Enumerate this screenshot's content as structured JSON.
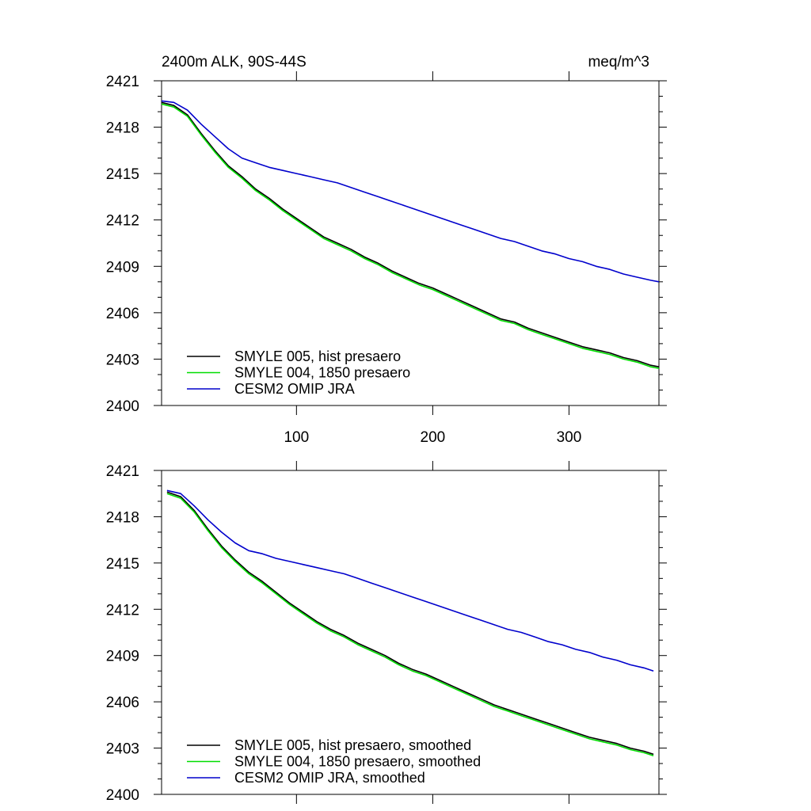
{
  "chart_data": [
    {
      "type": "line",
      "title": "2400m ALK, 90S-44S",
      "units": "meq/m^3",
      "xlabel": "",
      "ylabel": "",
      "xlim": [
        1,
        366
      ],
      "ylim": [
        2400,
        2421
      ],
      "xticks": [
        100,
        200,
        300
      ],
      "xtick_labels": [
        "100",
        "200",
        "300"
      ],
      "yticks": [
        2400,
        2403,
        2406,
        2409,
        2412,
        2415,
        2418,
        2421
      ],
      "ytick_labels": [
        "2400",
        "2403",
        "2406",
        "2409",
        "2412",
        "2415",
        "2418",
        "2421"
      ],
      "grid": false,
      "legend_position": "bottom-left",
      "series": [
        {
          "name": "SMYLE 005, hist presaero",
          "color": "#000000",
          "x": [
            1,
            10,
            20,
            30,
            40,
            50,
            60,
            70,
            80,
            90,
            100,
            110,
            120,
            130,
            140,
            150,
            160,
            170,
            180,
            190,
            200,
            210,
            220,
            230,
            240,
            250,
            260,
            270,
            280,
            290,
            300,
            310,
            320,
            330,
            340,
            350,
            360,
            366
          ],
          "y": [
            2419.6,
            2419.4,
            2418.8,
            2417.6,
            2416.5,
            2415.5,
            2414.8,
            2414.0,
            2413.4,
            2412.7,
            2412.1,
            2411.5,
            2410.9,
            2410.5,
            2410.1,
            2409.6,
            2409.2,
            2408.7,
            2408.3,
            2407.9,
            2407.6,
            2407.2,
            2406.8,
            2406.4,
            2406.0,
            2405.6,
            2405.4,
            2405.0,
            2404.7,
            2404.4,
            2404.1,
            2403.8,
            2403.6,
            2403.4,
            2403.1,
            2402.9,
            2402.6,
            2402.5
          ]
        },
        {
          "name": "SMYLE 004, 1850 presaero",
          "color": "#00dd00",
          "x": [
            1,
            10,
            20,
            30,
            40,
            50,
            60,
            70,
            80,
            90,
            100,
            110,
            120,
            130,
            140,
            150,
            160,
            170,
            180,
            190,
            200,
            210,
            220,
            230,
            240,
            250,
            260,
            270,
            280,
            290,
            300,
            310,
            320,
            330,
            340,
            350,
            360,
            366
          ],
          "y": [
            2419.5,
            2419.3,
            2418.7,
            2417.5,
            2416.4,
            2415.4,
            2414.7,
            2413.9,
            2413.3,
            2412.6,
            2412.0,
            2411.4,
            2410.8,
            2410.4,
            2410.0,
            2409.5,
            2409.1,
            2408.6,
            2408.2,
            2407.8,
            2407.5,
            2407.1,
            2406.7,
            2406.3,
            2405.9,
            2405.5,
            2405.3,
            2404.9,
            2404.6,
            2404.3,
            2404.0,
            2403.7,
            2403.5,
            2403.3,
            2403.0,
            2402.8,
            2402.5,
            2402.4
          ]
        },
        {
          "name": "CESM2 OMIP JRA",
          "color": "#0000cc",
          "x": [
            1,
            10,
            20,
            30,
            40,
            50,
            60,
            70,
            80,
            90,
            100,
            110,
            120,
            130,
            140,
            150,
            160,
            170,
            180,
            190,
            200,
            210,
            220,
            230,
            240,
            250,
            260,
            270,
            280,
            290,
            300,
            310,
            320,
            330,
            340,
            350,
            360,
            366
          ],
          "y": [
            2419.7,
            2419.6,
            2419.1,
            2418.2,
            2417.4,
            2416.6,
            2416.0,
            2415.7,
            2415.4,
            2415.2,
            2415.0,
            2414.8,
            2414.6,
            2414.4,
            2414.1,
            2413.8,
            2413.5,
            2413.2,
            2412.9,
            2412.6,
            2412.3,
            2412.0,
            2411.7,
            2411.4,
            2411.1,
            2410.8,
            2410.6,
            2410.3,
            2410.0,
            2409.8,
            2409.5,
            2409.3,
            2409.0,
            2408.8,
            2408.5,
            2408.3,
            2408.1,
            2408.0
          ]
        }
      ]
    },
    {
      "type": "line",
      "title": "",
      "units": "",
      "xlabel": "",
      "ylabel": "",
      "xlim": [
        1,
        366
      ],
      "ylim": [
        2400,
        2421
      ],
      "xticks": [
        100,
        200,
        300
      ],
      "xtick_labels": [],
      "yticks": [
        2400,
        2403,
        2406,
        2409,
        2412,
        2415,
        2418,
        2421
      ],
      "ytick_labels": [
        "2400",
        "2403",
        "2406",
        "2409",
        "2412",
        "2415",
        "2418",
        "2421"
      ],
      "grid": false,
      "legend_position": "bottom-left",
      "series": [
        {
          "name": "SMYLE 005, hist presaero, smoothed",
          "color": "#000000",
          "x": [
            5,
            15,
            25,
            35,
            45,
            55,
            65,
            75,
            85,
            95,
            105,
            115,
            125,
            135,
            145,
            155,
            165,
            175,
            185,
            195,
            205,
            215,
            225,
            235,
            245,
            255,
            265,
            275,
            285,
            295,
            305,
            315,
            325,
            335,
            345,
            355,
            362
          ],
          "y": [
            2419.6,
            2419.3,
            2418.4,
            2417.2,
            2416.1,
            2415.2,
            2414.4,
            2413.8,
            2413.1,
            2412.4,
            2411.8,
            2411.2,
            2410.7,
            2410.3,
            2409.8,
            2409.4,
            2409.0,
            2408.5,
            2408.1,
            2407.8,
            2407.4,
            2407.0,
            2406.6,
            2406.2,
            2405.8,
            2405.5,
            2405.2,
            2404.9,
            2404.6,
            2404.3,
            2404.0,
            2403.7,
            2403.5,
            2403.3,
            2403.0,
            2402.8,
            2402.6
          ]
        },
        {
          "name": "SMYLE 004, 1850 presaero, smoothed",
          "color": "#00dd00",
          "x": [
            5,
            15,
            25,
            35,
            45,
            55,
            65,
            75,
            85,
            95,
            105,
            115,
            125,
            135,
            145,
            155,
            165,
            175,
            185,
            195,
            205,
            215,
            225,
            235,
            245,
            255,
            265,
            275,
            285,
            295,
            305,
            315,
            325,
            335,
            345,
            355,
            362
          ],
          "y": [
            2419.5,
            2419.2,
            2418.3,
            2417.1,
            2416.0,
            2415.1,
            2414.3,
            2413.7,
            2413.0,
            2412.3,
            2411.7,
            2411.1,
            2410.6,
            2410.2,
            2409.7,
            2409.3,
            2408.9,
            2408.4,
            2408.0,
            2407.7,
            2407.3,
            2406.9,
            2406.5,
            2406.1,
            2405.7,
            2405.4,
            2405.1,
            2404.8,
            2404.5,
            2404.2,
            2403.9,
            2403.6,
            2403.4,
            2403.2,
            2402.9,
            2402.7,
            2402.5
          ]
        },
        {
          "name": "CESM2 OMIP JRA, smoothed",
          "color": "#0000cc",
          "x": [
            5,
            15,
            25,
            35,
            45,
            55,
            65,
            75,
            85,
            95,
            105,
            115,
            125,
            135,
            145,
            155,
            165,
            175,
            185,
            195,
            205,
            215,
            225,
            235,
            245,
            255,
            265,
            275,
            285,
            295,
            305,
            315,
            325,
            335,
            345,
            355,
            362
          ],
          "y": [
            2419.7,
            2419.5,
            2418.7,
            2417.8,
            2417.0,
            2416.3,
            2415.8,
            2415.6,
            2415.3,
            2415.1,
            2414.9,
            2414.7,
            2414.5,
            2414.3,
            2414.0,
            2413.7,
            2413.4,
            2413.1,
            2412.8,
            2412.5,
            2412.2,
            2411.9,
            2411.6,
            2411.3,
            2411.0,
            2410.7,
            2410.5,
            2410.2,
            2409.9,
            2409.7,
            2409.4,
            2409.2,
            2408.9,
            2408.7,
            2408.4,
            2408.2,
            2408.0
          ]
        }
      ]
    }
  ]
}
